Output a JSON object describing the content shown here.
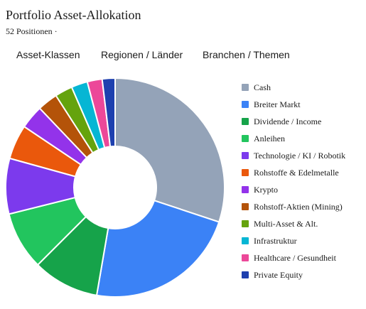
{
  "header": {
    "title": "Portfolio Asset-Allokation",
    "subtitle": "52 Positionen ·"
  },
  "tabs": [
    {
      "label": "Asset-Klassen"
    },
    {
      "label": "Regionen / Länder"
    },
    {
      "label": "Branchen / Themen"
    }
  ],
  "chart_data": {
    "type": "pie",
    "style": "donut",
    "title": "",
    "legend_position": "right",
    "start_angle_deg": 0,
    "direction": "clockwise",
    "slices": [
      {
        "label": "Cash",
        "value": 30.1,
        "color": "#94a3b8"
      },
      {
        "label": "Breiter Markt",
        "value": 22.6,
        "color": "#3b82f6"
      },
      {
        "label": "Dividende / Income",
        "value": 9.8,
        "color": "#16a34a"
      },
      {
        "label": "Anleihen",
        "value": 8.6,
        "color": "#22c55e"
      },
      {
        "label": "Technologie / KI / Robotik",
        "value": 8.2,
        "color": "#7c3aed"
      },
      {
        "label": "Rohstoffe & Edelmetalle",
        "value": 5.1,
        "color": "#ea580c"
      },
      {
        "label": "Krypto",
        "value": 3.5,
        "color": "#9333ea"
      },
      {
        "label": "Rohstoff-Aktien (Mining)",
        "value": 3.0,
        "color": "#b45309"
      },
      {
        "label": "Multi-Asset & Alt.",
        "value": 2.6,
        "color": "#65a30d"
      },
      {
        "label": "Infrastruktur",
        "value": 2.4,
        "color": "#06b6d4"
      },
      {
        "label": "Healthcare / Gesundheit",
        "value": 2.2,
        "color": "#ec4899"
      },
      {
        "label": "Private Equity",
        "value": 1.9,
        "color": "#1e40af"
      }
    ]
  }
}
